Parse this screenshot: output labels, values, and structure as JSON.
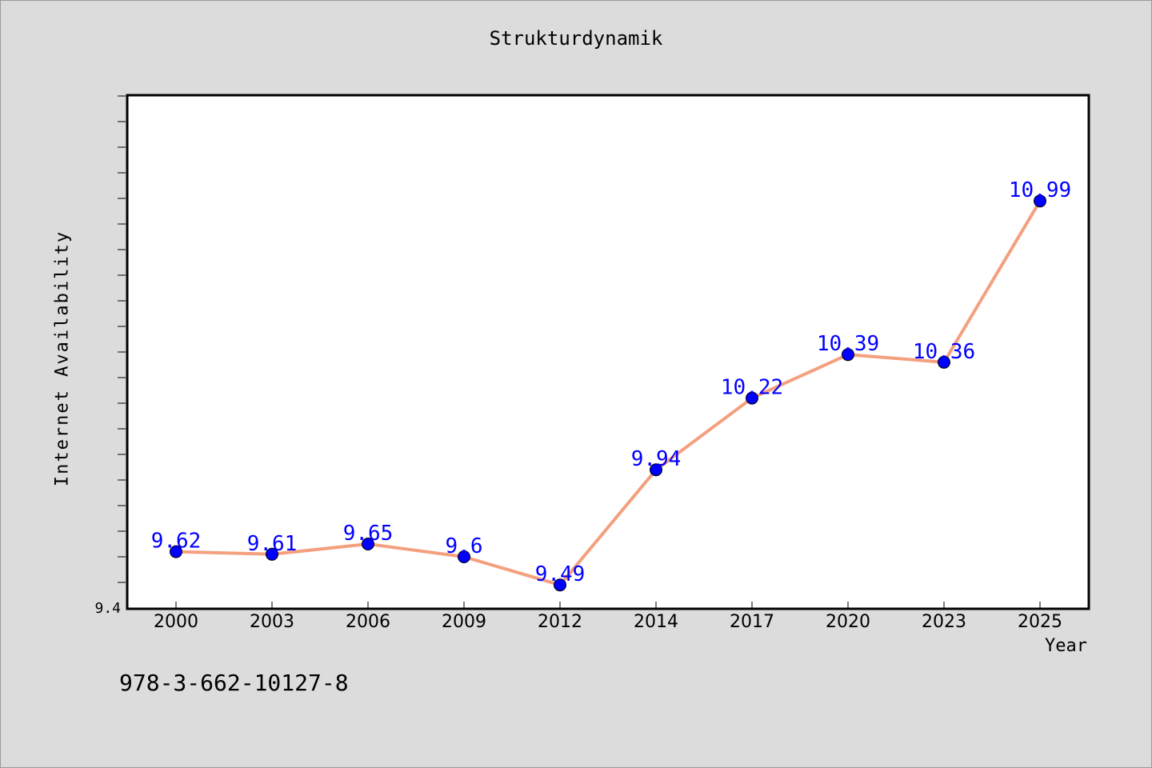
{
  "footer": {
    "code": "978-3-662-10127-8"
  },
  "chart_data": {
    "type": "line",
    "title": "Strukturdynamik",
    "xlabel": "Year",
    "ylabel": "Internet Availability",
    "categories": [
      "2000",
      "2003",
      "2006",
      "2009",
      "2012",
      "2014",
      "2017",
      "2020",
      "2023",
      "2025"
    ],
    "series": [
      {
        "values": [
          9.62,
          9.61,
          9.65,
          9.6,
          9.49,
          9.94,
          10.22,
          10.39,
          10.36,
          10.99
        ]
      }
    ],
    "data_labels": [
      "9.62",
      "9.61",
      "9.65",
      "9.6",
      "9.49",
      "9.94",
      "10.22",
      "10.39",
      "10.36",
      "10.99"
    ],
    "y_tick_labels": [
      "9.4"
    ],
    "ylim": [
      9.4,
      11.4
    ],
    "grid": false,
    "colors": {
      "line": "#f4a07e",
      "marker": "#0000ff",
      "label": "#0000ff"
    }
  }
}
